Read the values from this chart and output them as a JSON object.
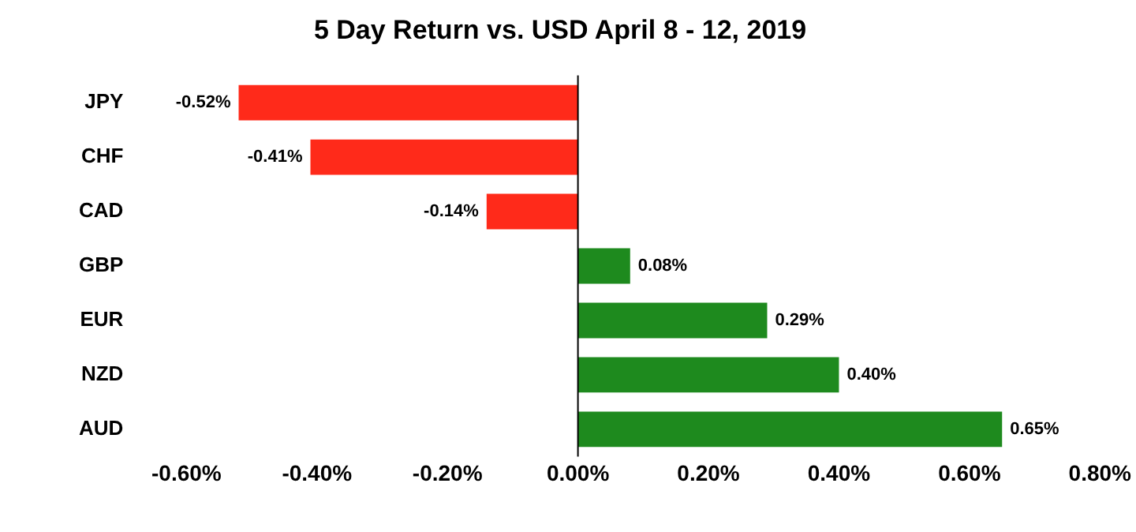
{
  "chart_data": {
    "type": "bar",
    "orientation": "horizontal",
    "title": "5 Day Return vs. USD April 8 - 12, 2019",
    "categories": [
      "JPY",
      "CHF",
      "CAD",
      "GBP",
      "EUR",
      "NZD",
      "AUD"
    ],
    "values": [
      -0.52,
      -0.41,
      -0.14,
      0.08,
      0.29,
      0.4,
      0.65
    ],
    "colors": [
      "#ff2a1a",
      "#ff2a1a",
      "#ff2a1a",
      "#1e8a1e",
      "#1e8a1e",
      "#1e8a1e",
      "#1e8a1e"
    ],
    "value_labels": [
      "-0.52%",
      "-0.41%",
      "-0.14%",
      "0.08%",
      "0.29%",
      "0.40%",
      "0.65%"
    ],
    "xlim": [
      -0.6,
      0.8
    ],
    "xticks": [
      {
        "value": -0.6,
        "label": "-0.60%"
      },
      {
        "value": -0.4,
        "label": "-0.40%"
      },
      {
        "value": -0.2,
        "label": "-0.20%"
      },
      {
        "value": 0,
        "label": "0.00%"
      },
      {
        "value": 0.2,
        "label": "0.20%"
      },
      {
        "value": 0.4,
        "label": "0.40%"
      },
      {
        "value": 0.6,
        "label": "0.60%"
      },
      {
        "value": 0.8,
        "label": "0.80%"
      }
    ],
    "ref_lines": [
      {
        "axis": "x",
        "value": 0,
        "color": "#000000"
      }
    ],
    "grid": false,
    "legend": false
  }
}
